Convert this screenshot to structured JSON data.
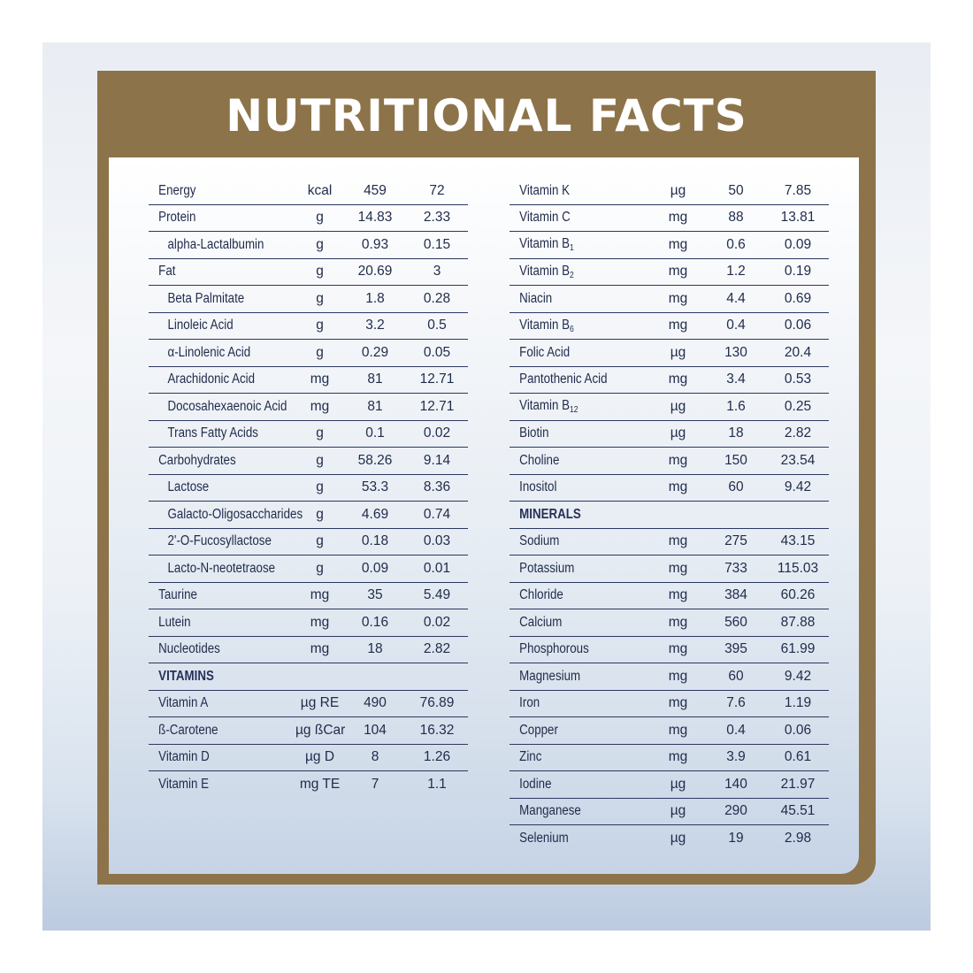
{
  "title": "NUTRITIONAL FACTS",
  "left": [
    {
      "name": "Energy",
      "unit": "kcal",
      "per100": "459",
      "perServing": "72"
    },
    {
      "name": "Protein",
      "unit": "g",
      "per100": "14.83",
      "perServing": "2.33"
    },
    {
      "name": "alpha-Lactalbumin",
      "unit": "g",
      "per100": "0.93",
      "perServing": "0.15",
      "indent": true
    },
    {
      "name": "Fat",
      "unit": "g",
      "per100": "20.69",
      "perServing": "3"
    },
    {
      "name": "Beta Palmitate",
      "unit": "g",
      "per100": "1.8",
      "perServing": "0.28",
      "indent": true
    },
    {
      "name": "Linoleic Acid",
      "unit": "g",
      "per100": "3.2",
      "perServing": "0.5",
      "indent": true
    },
    {
      "name": "α-Linolenic Acid",
      "unit": "g",
      "per100": "0.29",
      "perServing": "0.05",
      "indent": true
    },
    {
      "name": "Arachidonic Acid",
      "unit": "mg",
      "per100": "81",
      "perServing": "12.71",
      "indent": true
    },
    {
      "name": "Docosahexaenoic Acid",
      "unit": "mg",
      "per100": "81",
      "perServing": "12.71",
      "indent": true
    },
    {
      "name": "Trans Fatty Acids",
      "unit": "g",
      "per100": "0.1",
      "perServing": "0.02",
      "indent": true
    },
    {
      "name": "Carbohydrates",
      "unit": "g",
      "per100": "58.26",
      "perServing": "9.14"
    },
    {
      "name": "Lactose",
      "unit": "g",
      "per100": "53.3",
      "perServing": "8.36",
      "indent": true
    },
    {
      "name": "Galacto-Oligosaccharides",
      "unit": "g",
      "per100": "4.69",
      "perServing": "0.74",
      "indent": true
    },
    {
      "name": "2'-O-Fucosyllactose",
      "unit": "g",
      "per100": "0.18",
      "perServing": "0.03",
      "indent": true
    },
    {
      "name": "Lacto-N-neotetraose",
      "unit": "g",
      "per100": "0.09",
      "perServing": "0.01",
      "indent": true
    },
    {
      "name": "Taurine",
      "unit": "mg",
      "per100": "35",
      "perServing": "5.49"
    },
    {
      "name": "Lutein",
      "unit": "mg",
      "per100": "0.16",
      "perServing": "0.02"
    },
    {
      "name": "Nucleotides",
      "unit": "mg",
      "per100": "18",
      "perServing": "2.82"
    },
    {
      "section": "VITAMINS"
    },
    {
      "name": "Vitamin A",
      "unit": "µg RE",
      "per100": "490",
      "perServing": "76.89"
    },
    {
      "name": "ß-Carotene",
      "unit": "µg ßCar",
      "per100": "104",
      "perServing": "16.32"
    },
    {
      "name": "Vitamin D",
      "unit": "µg D",
      "per100": "8",
      "perServing": "1.26"
    },
    {
      "name": "Vitamin E",
      "unit": "mg TE",
      "per100": "7",
      "perServing": "1.1",
      "noBorder": true
    }
  ],
  "right": [
    {
      "name": "Vitamin K",
      "unit": "µg",
      "per100": "50",
      "perServing": "7.85"
    },
    {
      "name": "Vitamin C",
      "unit": "mg",
      "per100": "88",
      "perServing": "13.81"
    },
    {
      "name": "Vitamin B",
      "sub": "1",
      "unit": "mg",
      "per100": "0.6",
      "perServing": "0.09"
    },
    {
      "name": "Vitamin B",
      "sub": "2",
      "unit": "mg",
      "per100": "1.2",
      "perServing": "0.19"
    },
    {
      "name": "Niacin",
      "unit": "mg",
      "per100": "4.4",
      "perServing": "0.69"
    },
    {
      "name": "Vitamin B",
      "sub": "6",
      "unit": "mg",
      "per100": "0.4",
      "perServing": "0.06"
    },
    {
      "name": "Folic Acid",
      "unit": "µg",
      "per100": "130",
      "perServing": "20.4"
    },
    {
      "name": "Pantothenic Acid",
      "unit": "mg",
      "per100": "3.4",
      "perServing": "0.53"
    },
    {
      "name": "Vitamin B",
      "sub": "12",
      "unit": "µg",
      "per100": "1.6",
      "perServing": "0.25"
    },
    {
      "name": "Biotin",
      "unit": "µg",
      "per100": "18",
      "perServing": "2.82"
    },
    {
      "name": "Choline",
      "unit": "mg",
      "per100": "150",
      "perServing": "23.54"
    },
    {
      "name": "Inositol",
      "unit": "mg",
      "per100": "60",
      "perServing": "9.42"
    },
    {
      "section": "MINERALS"
    },
    {
      "name": "Sodium",
      "unit": "mg",
      "per100": "275",
      "perServing": "43.15"
    },
    {
      "name": "Potassium",
      "unit": "mg",
      "per100": "733",
      "perServing": "115.03"
    },
    {
      "name": "Chloride",
      "unit": "mg",
      "per100": "384",
      "perServing": "60.26"
    },
    {
      "name": "Calcium",
      "unit": "mg",
      "per100": "560",
      "perServing": "87.88"
    },
    {
      "name": "Phosphorous",
      "unit": "mg",
      "per100": "395",
      "perServing": "61.99"
    },
    {
      "name": "Magnesium",
      "unit": "mg",
      "per100": "60",
      "perServing": "9.42"
    },
    {
      "name": "Iron",
      "unit": "mg",
      "per100": "7.6",
      "perServing": "1.19"
    },
    {
      "name": "Copper",
      "unit": "mg",
      "per100": "0.4",
      "perServing": "0.06"
    },
    {
      "name": "Zinc",
      "unit": "mg",
      "per100": "3.9",
      "perServing": "0.61"
    },
    {
      "name": "Iodine",
      "unit": "µg",
      "per100": "140",
      "perServing": "21.97"
    },
    {
      "name": "Manganese",
      "unit": "µg",
      "per100": "290",
      "perServing": "45.51"
    },
    {
      "name": "Selenium",
      "unit": "µg",
      "per100": "19",
      "perServing": "2.98",
      "noBorder": true
    }
  ]
}
